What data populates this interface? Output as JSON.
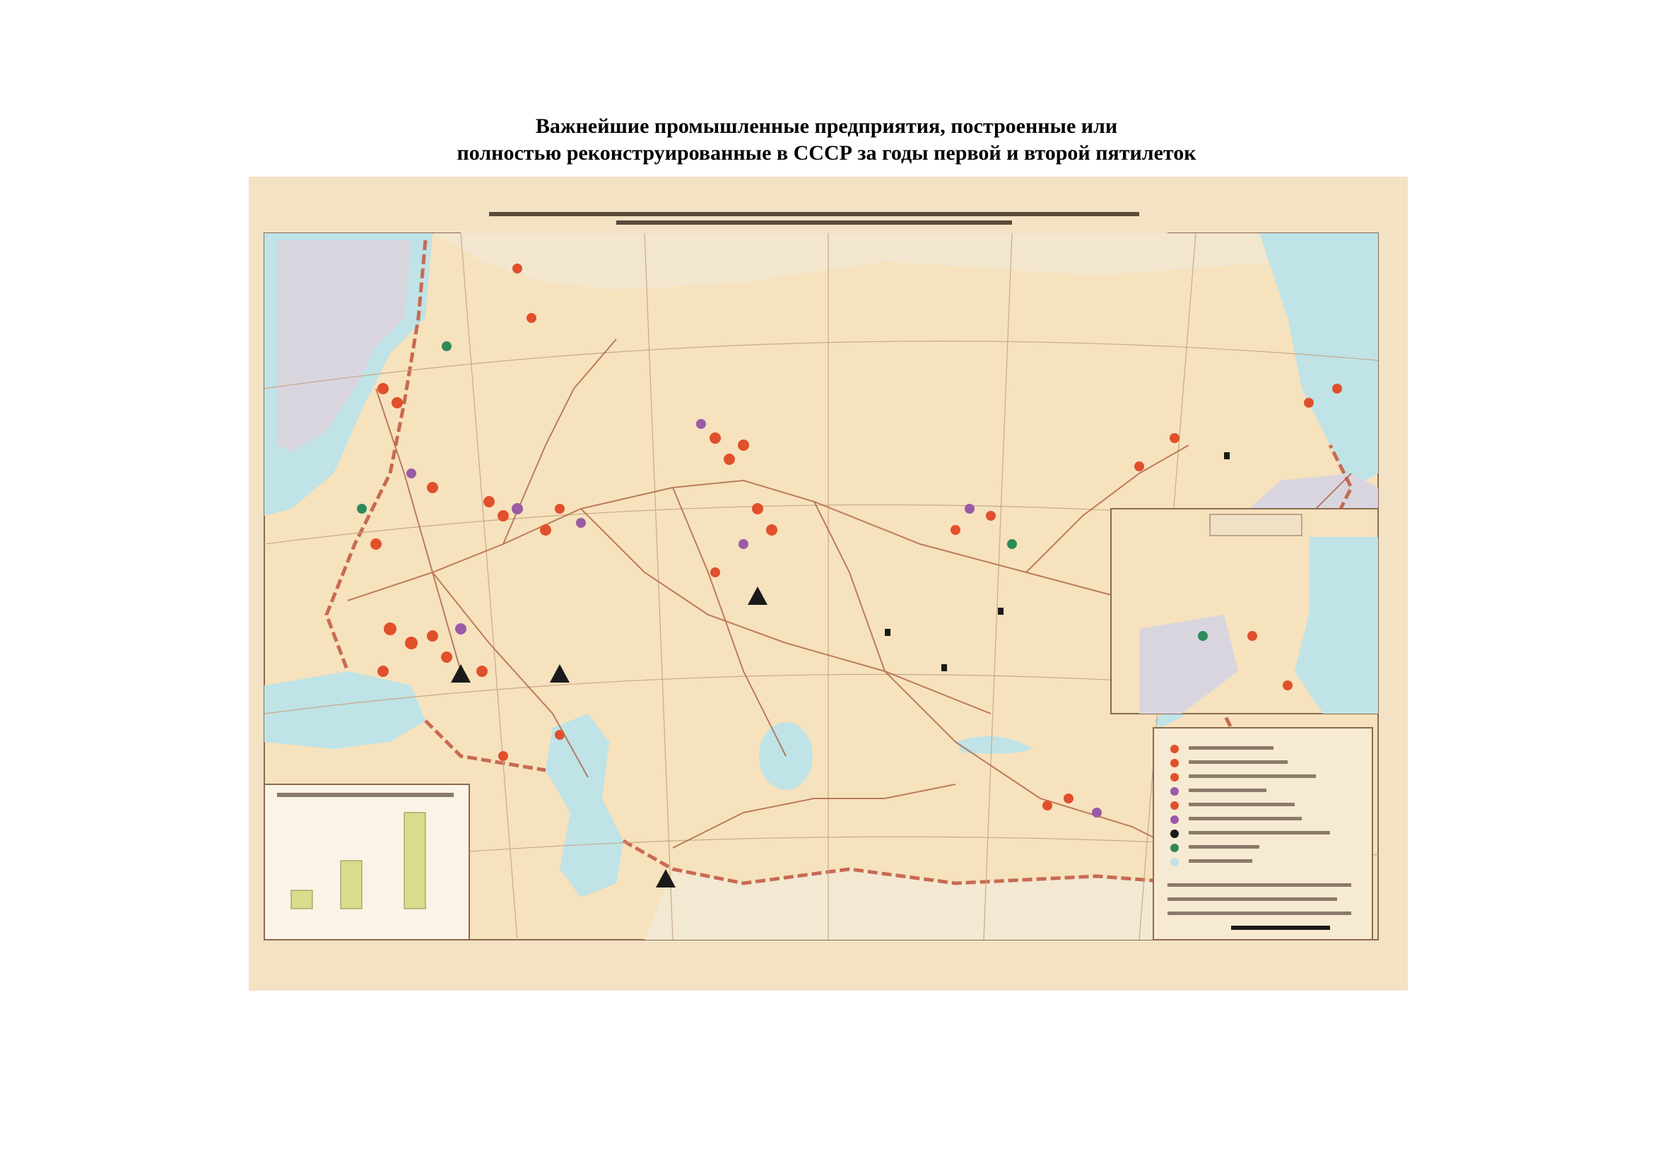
{
  "document": {
    "title_line1": "Важнейшие промышленные предприятия, построенные или",
    "title_line2": "полностью реконструированные в СССР за годы первой и второй пятилеток"
  },
  "map": {
    "colors": {
      "land": "#f6e2bd",
      "sea": "#bfe3e6",
      "border_outer": "#e8d9c6",
      "foreign_land": "#d8d2dc",
      "rail": "#a85a3c",
      "marker_red": "#e0502b",
      "marker_purple": "#9b5aa6",
      "marker_green": "#2f8a5a",
      "marker_black": "#1a1a1a"
    },
    "icons": [
      "enterprise-marker-icon",
      "mining-marker-icon",
      "triangle-marker-icon"
    ]
  }
}
